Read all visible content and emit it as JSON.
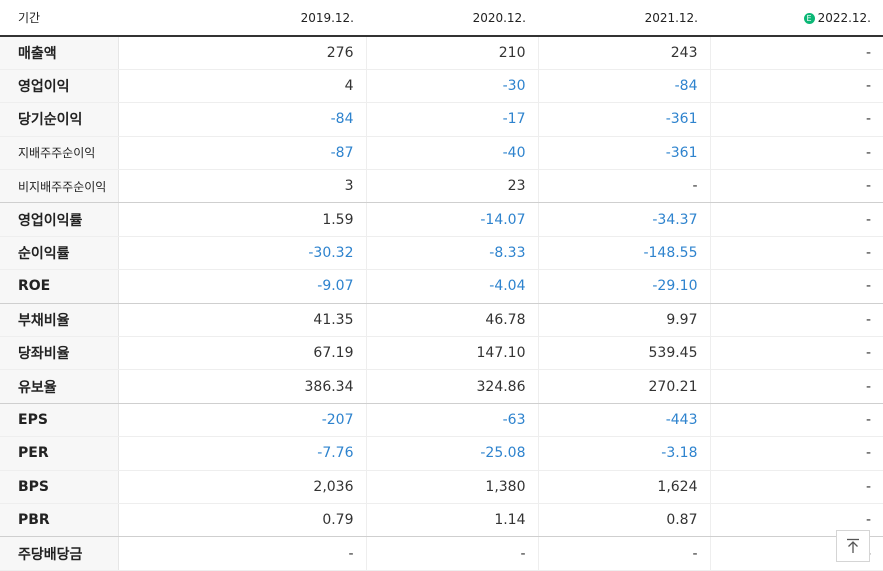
{
  "header": {
    "label": "기간",
    "periods": [
      "2019.12.",
      "2020.12.",
      "2021.12.",
      "2022.12."
    ],
    "estimate_badge": "E",
    "estimate_color": "#0bb776"
  },
  "colors": {
    "negative": "#2e83ce",
    "positive": "#333333"
  },
  "rows": [
    {
      "label": "매출액",
      "values": [
        "276",
        "210",
        "243",
        "-"
      ]
    },
    {
      "label": "영업이익",
      "values": [
        "4",
        "-30",
        "-84",
        "-"
      ]
    },
    {
      "label": "당기순이익",
      "values": [
        "-84",
        "-17",
        "-361",
        "-"
      ]
    },
    {
      "label": "지배주주순이익",
      "values": [
        "-87",
        "-40",
        "-361",
        "-"
      ]
    },
    {
      "label": "비지배주주순이익",
      "values": [
        "3",
        "23",
        "-",
        "-"
      ]
    },
    {
      "label": "영업이익률",
      "values": [
        "1.59",
        "-14.07",
        "-34.37",
        "-"
      ]
    },
    {
      "label": "순이익률",
      "values": [
        "-30.32",
        "-8.33",
        "-148.55",
        "-"
      ]
    },
    {
      "label": "ROE",
      "values": [
        "-9.07",
        "-4.04",
        "-29.10",
        "-"
      ]
    },
    {
      "label": "부채비율",
      "values": [
        "41.35",
        "46.78",
        "9.97",
        "-"
      ]
    },
    {
      "label": "당좌비율",
      "values": [
        "67.19",
        "147.10",
        "539.45",
        "-"
      ]
    },
    {
      "label": "유보율",
      "values": [
        "386.34",
        "324.86",
        "270.21",
        "-"
      ]
    },
    {
      "label": "EPS",
      "values": [
        "-207",
        "-63",
        "-443",
        "-"
      ]
    },
    {
      "label": "PER",
      "values": [
        "-7.76",
        "-25.08",
        "-3.18",
        "-"
      ]
    },
    {
      "label": "BPS",
      "values": [
        "2,036",
        "1,380",
        "1,624",
        "-"
      ]
    },
    {
      "label": "PBR",
      "values": [
        "0.79",
        "1.14",
        "0.87",
        "-"
      ]
    },
    {
      "label": "주당배당금",
      "values": [
        "-",
        "-",
        "-",
        "-"
      ]
    }
  ],
  "scroll_top_icon": "arrow-up-to-top-icon"
}
